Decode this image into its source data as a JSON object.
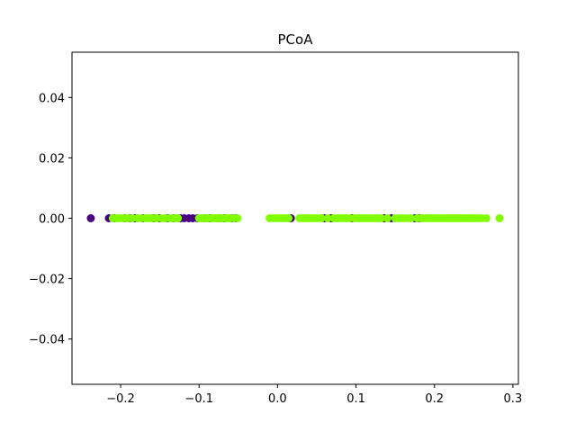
{
  "chart_data": {
    "type": "scatter",
    "title": "PCoA",
    "xlabel": "",
    "ylabel": "",
    "xlim": [
      -0.262,
      0.307
    ],
    "ylim": [
      -0.055,
      0.055
    ],
    "x_ticks": [
      -0.2,
      -0.1,
      0.0,
      0.1,
      0.2,
      0.3
    ],
    "x_tick_labels": [
      "−0.2",
      "−0.1",
      "0.0",
      "0.1",
      "0.2",
      "0.3"
    ],
    "y_ticks": [
      -0.04,
      -0.02,
      0.0,
      0.02,
      0.04
    ],
    "y_tick_labels": [
      "−0.04",
      "−0.02",
      "0.00",
      "0.02",
      "0.04"
    ],
    "grid": false,
    "colors": {
      "purple": "#4b0082",
      "green": "#7fff00"
    },
    "series": [
      {
        "color": "#4b0082",
        "points": [
          [
            -0.238,
            0
          ],
          [
            -0.215,
            0
          ],
          [
            -0.208,
            0
          ],
          [
            -0.195,
            0
          ],
          [
            -0.188,
            0
          ],
          [
            -0.182,
            0
          ],
          [
            -0.172,
            0
          ],
          [
            -0.158,
            0
          ],
          [
            -0.15,
            0
          ],
          [
            -0.14,
            0
          ],
          [
            -0.132,
            0
          ],
          [
            -0.124,
            0
          ],
          [
            -0.119,
            0
          ],
          [
            -0.113,
            0
          ],
          [
            -0.108,
            0
          ],
          [
            -0.102,
            0
          ],
          [
            -0.093,
            0
          ],
          [
            -0.086,
            0
          ],
          [
            -0.075,
            0
          ],
          [
            -0.068,
            0
          ],
          [
            -0.058,
            0
          ],
          [
            -0.053,
            0
          ],
          [
            0.017,
            0
          ],
          [
            0.06,
            0
          ],
          [
            0.068,
            0
          ],
          [
            0.095,
            0
          ],
          [
            0.136,
            0
          ],
          [
            0.145,
            0
          ],
          [
            0.175,
            0
          ],
          [
            0.18,
            0
          ]
        ]
      },
      {
        "color": "#7fff00",
        "points": [
          [
            -0.21,
            0
          ],
          [
            -0.205,
            0
          ],
          [
            -0.2,
            0
          ],
          [
            -0.196,
            0
          ],
          [
            -0.19,
            0
          ],
          [
            -0.185,
            0
          ],
          [
            -0.178,
            0
          ],
          [
            -0.174,
            0
          ],
          [
            -0.168,
            0
          ],
          [
            -0.163,
            0
          ],
          [
            -0.16,
            0
          ],
          [
            -0.155,
            0
          ],
          [
            -0.148,
            0
          ],
          [
            -0.144,
            0
          ],
          [
            -0.138,
            0
          ],
          [
            -0.134,
            0
          ],
          [
            -0.13,
            0
          ],
          [
            -0.127,
            0
          ],
          [
            -0.1,
            0
          ],
          [
            -0.097,
            0
          ],
          [
            -0.092,
            0
          ],
          [
            -0.089,
            0
          ],
          [
            -0.084,
            0
          ],
          [
            -0.081,
            0
          ],
          [
            -0.079,
            0
          ],
          [
            -0.076,
            0
          ],
          [
            -0.072,
            0
          ],
          [
            -0.07,
            0
          ],
          [
            -0.065,
            0
          ],
          [
            -0.062,
            0
          ],
          [
            -0.06,
            0
          ],
          [
            -0.056,
            0
          ],
          [
            -0.051,
            0
          ],
          [
            -0.01,
            0
          ],
          [
            -0.005,
            0
          ],
          [
            0.0,
            0
          ],
          [
            0.005,
            0
          ],
          [
            0.01,
            0
          ],
          [
            0.014,
            0
          ],
          [
            0.028,
            0
          ],
          [
            0.032,
            0
          ],
          [
            0.036,
            0
          ],
          [
            0.04,
            0
          ],
          [
            0.044,
            0
          ],
          [
            0.048,
            0
          ],
          [
            0.052,
            0
          ],
          [
            0.056,
            0
          ],
          [
            0.064,
            0
          ],
          [
            0.072,
            0
          ],
          [
            0.076,
            0
          ],
          [
            0.08,
            0
          ],
          [
            0.084,
            0
          ],
          [
            0.088,
            0
          ],
          [
            0.092,
            0
          ],
          [
            0.098,
            0
          ],
          [
            0.102,
            0
          ],
          [
            0.106,
            0
          ],
          [
            0.11,
            0
          ],
          [
            0.115,
            0
          ],
          [
            0.12,
            0
          ],
          [
            0.124,
            0
          ],
          [
            0.128,
            0
          ],
          [
            0.132,
            0
          ],
          [
            0.14,
            0
          ],
          [
            0.15,
            0
          ],
          [
            0.155,
            0
          ],
          [
            0.16,
            0
          ],
          [
            0.165,
            0
          ],
          [
            0.17,
            0
          ],
          [
            0.178,
            0
          ],
          [
            0.184,
            0
          ],
          [
            0.188,
            0
          ],
          [
            0.192,
            0
          ],
          [
            0.196,
            0
          ],
          [
            0.2,
            0
          ],
          [
            0.204,
            0
          ],
          [
            0.208,
            0
          ],
          [
            0.212,
            0
          ],
          [
            0.216,
            0
          ],
          [
            0.22,
            0
          ],
          [
            0.224,
            0
          ],
          [
            0.228,
            0
          ],
          [
            0.232,
            0
          ],
          [
            0.236,
            0
          ],
          [
            0.24,
            0
          ],
          [
            0.245,
            0
          ],
          [
            0.25,
            0
          ],
          [
            0.255,
            0
          ],
          [
            0.26,
            0
          ],
          [
            0.266,
            0
          ],
          [
            0.283,
            0
          ]
        ]
      }
    ]
  }
}
